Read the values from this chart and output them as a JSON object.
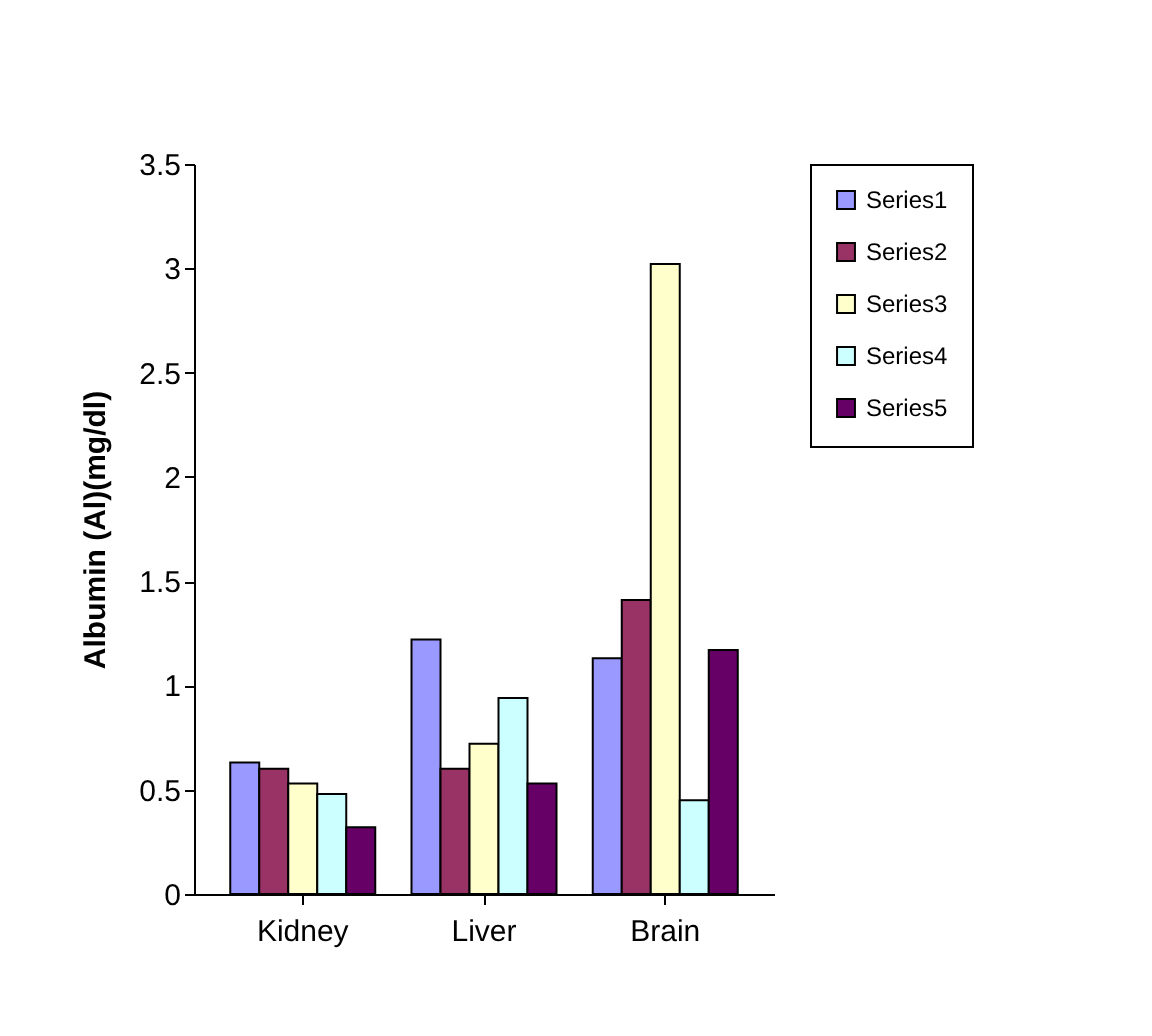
{
  "chart_data": {
    "type": "bar",
    "ylabel": "Albumin (Al)(mg/dl)",
    "categories": [
      "Kidney",
      "Liver",
      "Brain"
    ],
    "series": [
      {
        "name": "Series1",
        "color": "#9999ff",
        "values": [
          0.63,
          1.22,
          1.13
        ]
      },
      {
        "name": "Series2",
        "color": "#993366",
        "values": [
          0.6,
          0.6,
          1.41
        ]
      },
      {
        "name": "Series3",
        "color": "#ffffcc",
        "values": [
          0.53,
          0.72,
          3.02
        ]
      },
      {
        "name": "Series4",
        "color": "#ccffff",
        "values": [
          0.48,
          0.94,
          0.45
        ]
      },
      {
        "name": "Series5",
        "color": "#660066",
        "values": [
          0.32,
          0.53,
          1.17
        ]
      }
    ],
    "ylim": [
      0,
      3.5
    ],
    "yticks": [
      0,
      0.5,
      1,
      1.5,
      2,
      2.5,
      3,
      3.5
    ],
    "grid": false,
    "legend": "right"
  }
}
